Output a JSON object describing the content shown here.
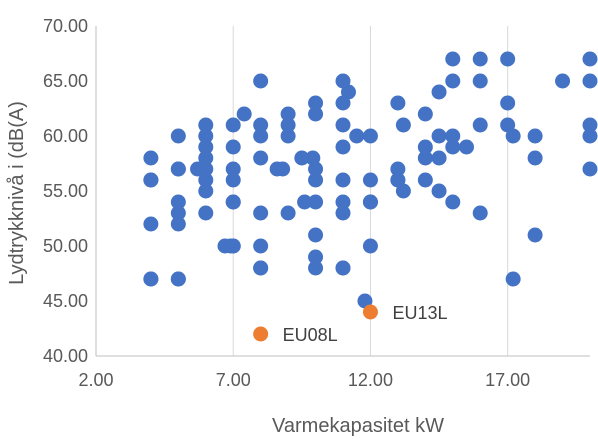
{
  "chart_data": {
    "type": "scatter",
    "title": "",
    "xlabel": "Varmekapasitet kW",
    "ylabel": "Lydtrykknivå i (dB(A)",
    "xlim": [
      2,
      20
    ],
    "ylim": [
      40,
      70
    ],
    "x_ticks": [
      2,
      7,
      12,
      17
    ],
    "x_tick_labels": [
      "2.00",
      "7.00",
      "12.00",
      "17.00"
    ],
    "y_ticks": [
      40,
      45,
      50,
      55,
      60,
      65,
      70
    ],
    "y_tick_labels": [
      "40.00",
      "45.00",
      "50.00",
      "55.00",
      "60.00",
      "65.00",
      "70.00"
    ],
    "grid": "vertical",
    "series": [
      {
        "color": "#4472C4",
        "points": [
          [
            4,
            58
          ],
          [
            4,
            56
          ],
          [
            4,
            56
          ],
          [
            4,
            52
          ],
          [
            4,
            47
          ],
          [
            4,
            47
          ],
          [
            5,
            60
          ],
          [
            5,
            57
          ],
          [
            5,
            57
          ],
          [
            5,
            54
          ],
          [
            5,
            53
          ],
          [
            5,
            52
          ],
          [
            5,
            47
          ],
          [
            5,
            47
          ],
          [
            5.7,
            57
          ],
          [
            6,
            61
          ],
          [
            6,
            60
          ],
          [
            6,
            59
          ],
          [
            6,
            58
          ],
          [
            6,
            57
          ],
          [
            6,
            56
          ],
          [
            6,
            55
          ],
          [
            6,
            53
          ],
          [
            6.7,
            50
          ],
          [
            6.9,
            50
          ],
          [
            7,
            61
          ],
          [
            7,
            59
          ],
          [
            7,
            57
          ],
          [
            7,
            56
          ],
          [
            7,
            54
          ],
          [
            7,
            54
          ],
          [
            7,
            50
          ],
          [
            7,
            50
          ],
          [
            7.4,
            62
          ],
          [
            8,
            65
          ],
          [
            8,
            61
          ],
          [
            8,
            60
          ],
          [
            8,
            58
          ],
          [
            8,
            53
          ],
          [
            8,
            50
          ],
          [
            8,
            48
          ],
          [
            8,
            48
          ],
          [
            8.6,
            57
          ],
          [
            8.8,
            57
          ],
          [
            9,
            62
          ],
          [
            9,
            61
          ],
          [
            9,
            60
          ],
          [
            9,
            53
          ],
          [
            9.5,
            58
          ],
          [
            9.6,
            54
          ],
          [
            9.9,
            58
          ],
          [
            10,
            63
          ],
          [
            10,
            62
          ],
          [
            10,
            57
          ],
          [
            10,
            56
          ],
          [
            10,
            54
          ],
          [
            10,
            51
          ],
          [
            10,
            49
          ],
          [
            10,
            48
          ],
          [
            11,
            65
          ],
          [
            11,
            63
          ],
          [
            11,
            61
          ],
          [
            11,
            59
          ],
          [
            11,
            56
          ],
          [
            11,
            54
          ],
          [
            11,
            53
          ],
          [
            11,
            48
          ],
          [
            11,
            48
          ],
          [
            11.2,
            64
          ],
          [
            11.5,
            60
          ],
          [
            11.8,
            45
          ],
          [
            12,
            60
          ],
          [
            12,
            56
          ],
          [
            12,
            54
          ],
          [
            12,
            54
          ],
          [
            12,
            50
          ],
          [
            13,
            63
          ],
          [
            13,
            57
          ],
          [
            13,
            56
          ],
          [
            13,
            56
          ],
          [
            13.2,
            61
          ],
          [
            13.2,
            55
          ],
          [
            14,
            62
          ],
          [
            14,
            59
          ],
          [
            14,
            58
          ],
          [
            14,
            56
          ],
          [
            14.5,
            64
          ],
          [
            14.5,
            60
          ],
          [
            14.5,
            58
          ],
          [
            14.5,
            55
          ],
          [
            15,
            67
          ],
          [
            15,
            65
          ],
          [
            15,
            60
          ],
          [
            15,
            59
          ],
          [
            15,
            54
          ],
          [
            15.5,
            59
          ],
          [
            16,
            67
          ],
          [
            16,
            65
          ],
          [
            16,
            61
          ],
          [
            16,
            53
          ],
          [
            17,
            67
          ],
          [
            17,
            63
          ],
          [
            17,
            61
          ],
          [
            17.2,
            60
          ],
          [
            17.2,
            47
          ],
          [
            18,
            60
          ],
          [
            18,
            58
          ],
          [
            18,
            51
          ],
          [
            19,
            65
          ],
          [
            20,
            67
          ],
          [
            20,
            65
          ],
          [
            20,
            61
          ],
          [
            20,
            60
          ],
          [
            20,
            57
          ]
        ]
      },
      {
        "color": "#ED7D31",
        "points": [
          [
            8,
            42,
            "EU08L"
          ],
          [
            12,
            44,
            "EU13L"
          ]
        ]
      }
    ]
  }
}
